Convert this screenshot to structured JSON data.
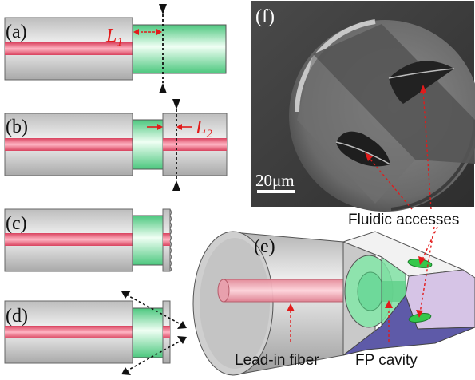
{
  "panels": {
    "a": {
      "label": "(a)",
      "dimension_symbol": "L",
      "dimension_subscript": "1"
    },
    "b": {
      "label": "(b)",
      "dimension_symbol": "L",
      "dimension_subscript": "2"
    },
    "c": {
      "label": "(c)"
    },
    "d": {
      "label": "(d)"
    },
    "e": {
      "label": "(e)"
    },
    "f": {
      "label": "(f)",
      "scale_bar": "20μm"
    }
  },
  "annotations": {
    "fluidic_accesses": "Fluidic accesses",
    "lead_in_fiber": "Lead-in fiber",
    "fp_cavity": "FP cavity"
  },
  "colors": {
    "cladding": "#c8c8c8",
    "core": "#e8506e",
    "cavity": "#6ed99a",
    "annotation": "#e21b1b",
    "wall_face": "#d6c4e6",
    "wall_bottom": "#5e5aa8",
    "sem_background": "#3a3a3a"
  }
}
